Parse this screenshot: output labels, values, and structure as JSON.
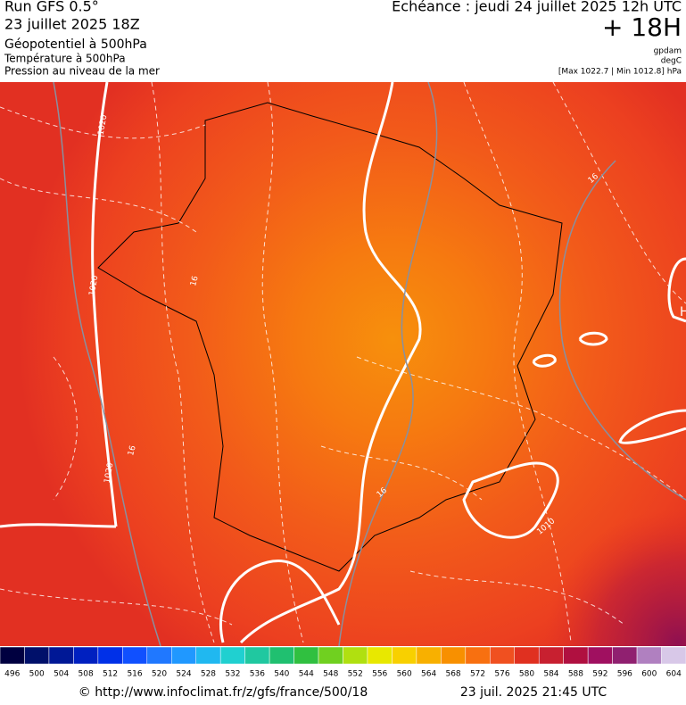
{
  "header": {
    "run": "Run GFS 0.5°",
    "date": "23 juillet 2025 18Z",
    "layer1": "Géopotentiel à 500hPa",
    "layer2": "Température à 500hPa",
    "layer3": "Pression au niveau de la mer",
    "echeance": "Echéance : jeudi 24 juillet 2025 12h UTC",
    "lead": "+ 18H",
    "unit1": "gpdam",
    "unit2": "degC",
    "range": "[Max 1022.7 | Min 1012.8] hPa"
  },
  "map": {
    "contour_labels": [
      "1020",
      "1020",
      "1020",
      "1010",
      "16",
      "16",
      "16",
      "16"
    ],
    "high_marker": "H"
  },
  "colorbar": {
    "ticks": [
      496,
      500,
      504,
      508,
      512,
      516,
      520,
      524,
      528,
      532,
      536,
      540,
      544,
      548,
      552,
      556,
      560,
      564,
      568,
      572,
      576,
      580,
      584,
      588,
      592,
      596,
      600,
      604
    ],
    "colors": [
      "#000040",
      "#00106a",
      "#001896",
      "#0020c0",
      "#0030e8",
      "#1050ff",
      "#2078ff",
      "#2098ff",
      "#20b8f0",
      "#20d0d0",
      "#20c8a0",
      "#20c070",
      "#30c040",
      "#70d020",
      "#b0e010",
      "#e8e800",
      "#f8d000",
      "#f8b000",
      "#f89000",
      "#f87010",
      "#f05020",
      "#e03020",
      "#c82030",
      "#b01040",
      "#a01060",
      "#902070",
      "#b080c0",
      "#d8c8e8"
    ]
  },
  "footer": {
    "url": "© http://www.infoclimat.fr/z/gfs/france/500/18",
    "stamp": "23 juil. 2025 21:45 UTC"
  }
}
